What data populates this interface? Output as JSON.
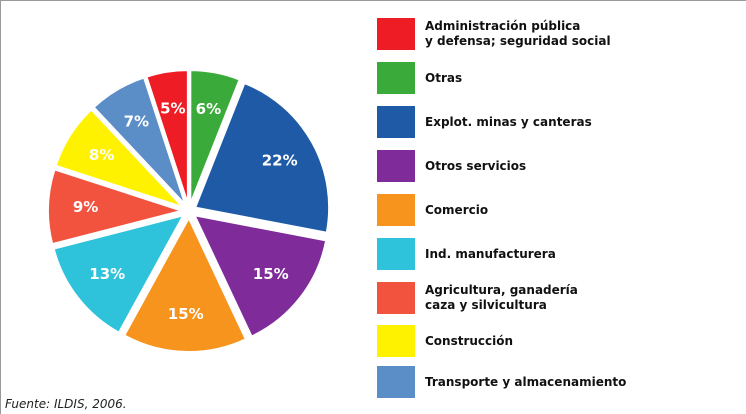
{
  "chart_data": {
    "type": "pie",
    "categories": [
      "Administración pública\ny defensa; seguridad social",
      "Otras",
      "Explot. minas y canteras",
      "Otros servicios",
      "Comercio",
      "Ind. manufacturera",
      "Agricultura, ganadería\ncaza y silvicultura",
      "Construcción",
      "Transporte y almacenamiento"
    ],
    "values": [
      5,
      6,
      22,
      15,
      15,
      13,
      9,
      8,
      7
    ],
    "value_labels": [
      "5%",
      "6%",
      "22%",
      "15%",
      "15%",
      "13%",
      "9%",
      "8%",
      "7%"
    ],
    "colors": [
      "#ee1c24",
      "#3aab3a",
      "#1f5aa6",
      "#7f2b99",
      "#f7941d",
      "#2fc2db",
      "#f1533e",
      "#fff200",
      "#5b8dc6"
    ],
    "source": "Fuente: ILDIS, 2006."
  }
}
